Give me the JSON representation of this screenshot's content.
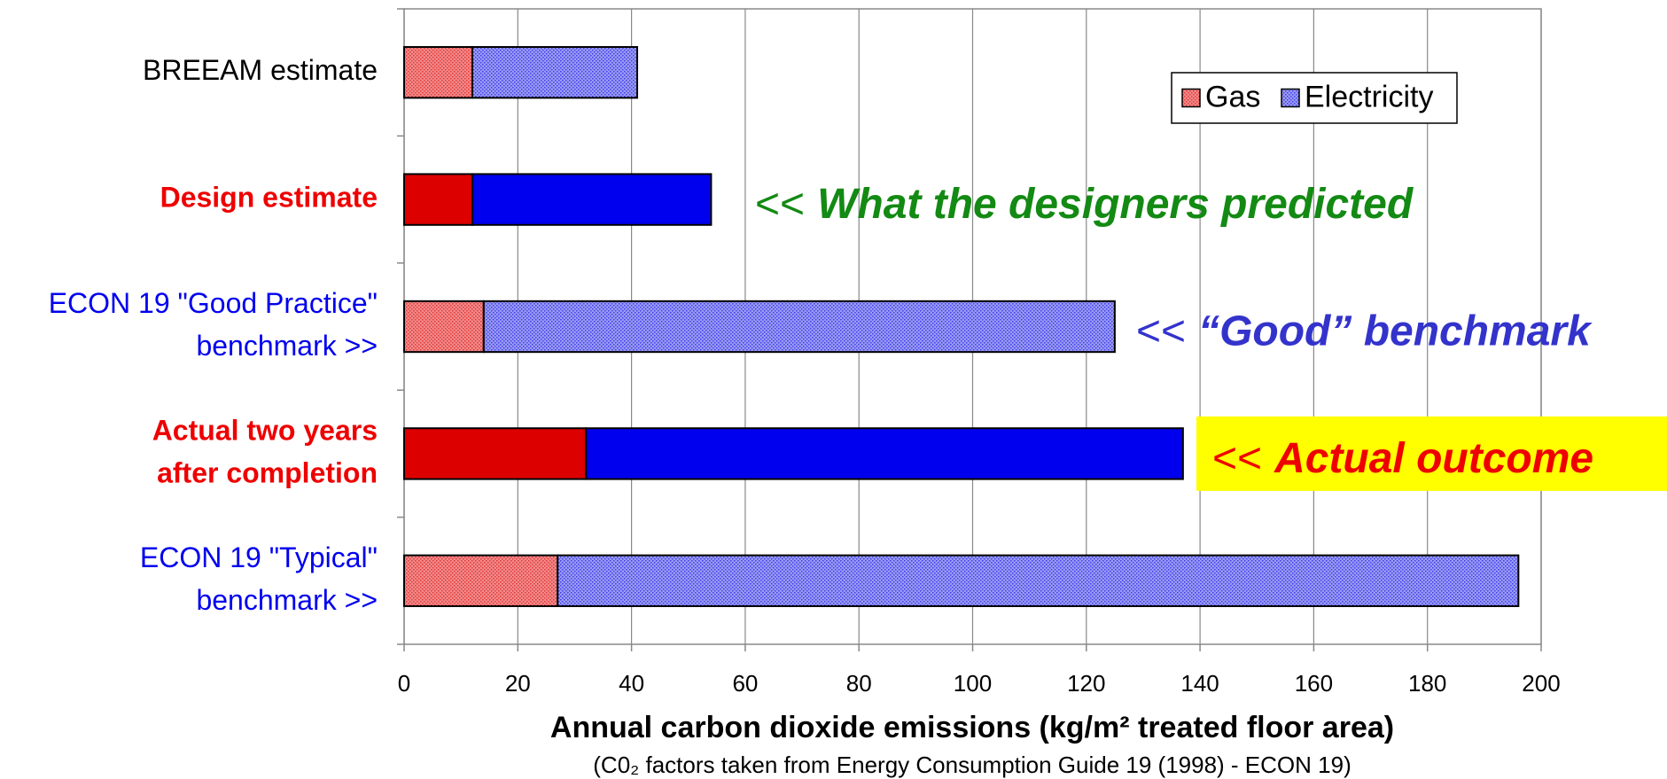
{
  "chart_data": {
    "type": "stacked_barh",
    "categories": [
      [
        "BREEAM estimate"
      ],
      [
        "Design estimate"
      ],
      [
        "ECON 19 \"Good Practice\"",
        "benchmark >>"
      ],
      [
        "Actual two years",
        "after completion"
      ],
      [
        "ECON 19 \"Typical\"",
        "benchmark  >>"
      ]
    ],
    "category_colors": [
      "#000000",
      "#ee0000",
      "#0000ee",
      "#ee0000",
      "#0000ee"
    ],
    "category_bold": [
      false,
      true,
      false,
      true,
      false
    ],
    "hatched": [
      true,
      false,
      true,
      false,
      true
    ],
    "series": [
      {
        "name": "Gas",
        "color": "#dd0000",
        "hatch_color": "#f08a8a",
        "values": [
          12,
          12,
          14,
          32,
          27
        ]
      },
      {
        "name": "Electricity",
        "color": "#0000ee",
        "hatch_color": "#9a9af0",
        "values": [
          29,
          42,
          111,
          105,
          169
        ]
      }
    ],
    "xlim": [
      0,
      200
    ],
    "xticks": [
      0,
      20,
      40,
      60,
      80,
      100,
      120,
      140,
      160,
      180,
      200
    ],
    "grid": true,
    "legend": "upper right",
    "xlabel": "Annual carbon dioxide emissions (kg/m² treated floor area)",
    "note": "(C0₂ factors taken from Energy Consumption Guide 19 (1998) - ECON 19)",
    "annotations": [
      {
        "category": 1,
        "prefix": "<<",
        "text": "What the designers predicted",
        "color": "#138a13"
      },
      {
        "category": 2,
        "prefix": "<<",
        "text": "“Good” benchmark",
        "color": "#3333cc"
      },
      {
        "category": 3,
        "prefix": "<<",
        "text": "Actual outcome",
        "color": "#ee0000",
        "background": "#ffff00"
      }
    ]
  }
}
